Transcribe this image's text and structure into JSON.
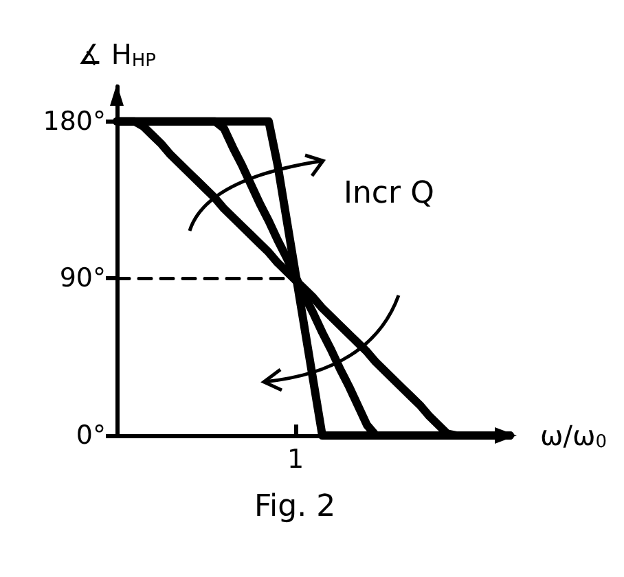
{
  "chart_data": {
    "type": "line",
    "xlabel": "ω/ω$_{0}$",
    "ylabel": "∡ H$_{HP}$",
    "ylim": [
      0,
      200
    ],
    "categories": [
      null,
      null,
      null,
      null,
      null,
      null,
      null,
      null,
      null,
      null,
      null,
      null,
      null,
      null,
      null,
      null,
      null,
      null,
      null,
      null,
      "1",
      null,
      null,
      null,
      null,
      null,
      null,
      null,
      null,
      null,
      null,
      null,
      null,
      null,
      null,
      null,
      null,
      null,
      null,
      null,
      null,
      null,
      null,
      null,
      null
    ],
    "yticks": [
      {
        "value": 0,
        "label": "0°"
      },
      {
        "value": 90,
        "label": "90°"
      },
      {
        "value": 180,
        "label": "180°"
      }
    ],
    "grid": false,
    "marker": "none",
    "annotations": [
      "Incr Q",
      "Fig. 2"
    ],
    "series": [
      {
        "color": "#000000",
        "values": [
          180,
          180,
          180,
          177,
          172,
          167,
          161,
          156,
          151,
          146,
          141,
          136,
          130,
          125,
          120,
          115,
          110,
          105,
          99,
          94,
          89,
          84,
          79,
          73,
          68,
          63,
          58,
          53,
          48,
          42,
          37,
          32,
          27,
          22,
          17,
          11,
          6,
          1,
          0,
          0,
          0,
          0,
          0,
          0,
          0
        ]
      },
      {
        "color": "#000000",
        "values": [
          180,
          180,
          180,
          180,
          180,
          180,
          180,
          180,
          180,
          180,
          180,
          180,
          176,
          165,
          155,
          144,
          133,
          123,
          112,
          102,
          91,
          80,
          70,
          59,
          49,
          38,
          28,
          17,
          6,
          0,
          0,
          0,
          0,
          0,
          0,
          0,
          0,
          0,
          0,
          0,
          0,
          0,
          0,
          0,
          0
        ]
      },
      {
        "color": "#000000",
        "values": [
          180,
          180,
          180,
          180,
          180,
          180,
          180,
          180,
          180,
          180,
          180,
          180,
          180,
          180,
          180,
          180,
          180,
          180,
          155,
          124,
          93,
          62,
          31,
          0,
          0,
          0,
          0,
          0,
          0,
          0,
          0,
          0,
          0,
          0,
          0,
          0,
          0,
          0,
          0,
          0,
          0,
          0,
          0,
          0,
          0
        ]
      },
      {
        "color": "#000000",
        "line_style": "dashed",
        "values": [
          90,
          90,
          90,
          90,
          90,
          90,
          90,
          90,
          90,
          90,
          90,
          90,
          90,
          90,
          90,
          90,
          90,
          90,
          90,
          90,
          90,
          null,
          null,
          null,
          null,
          null,
          null,
          null,
          null,
          null,
          null,
          null,
          null,
          null,
          null,
          null,
          null,
          null,
          null,
          null,
          null,
          null,
          null,
          null,
          null
        ]
      }
    ]
  }
}
